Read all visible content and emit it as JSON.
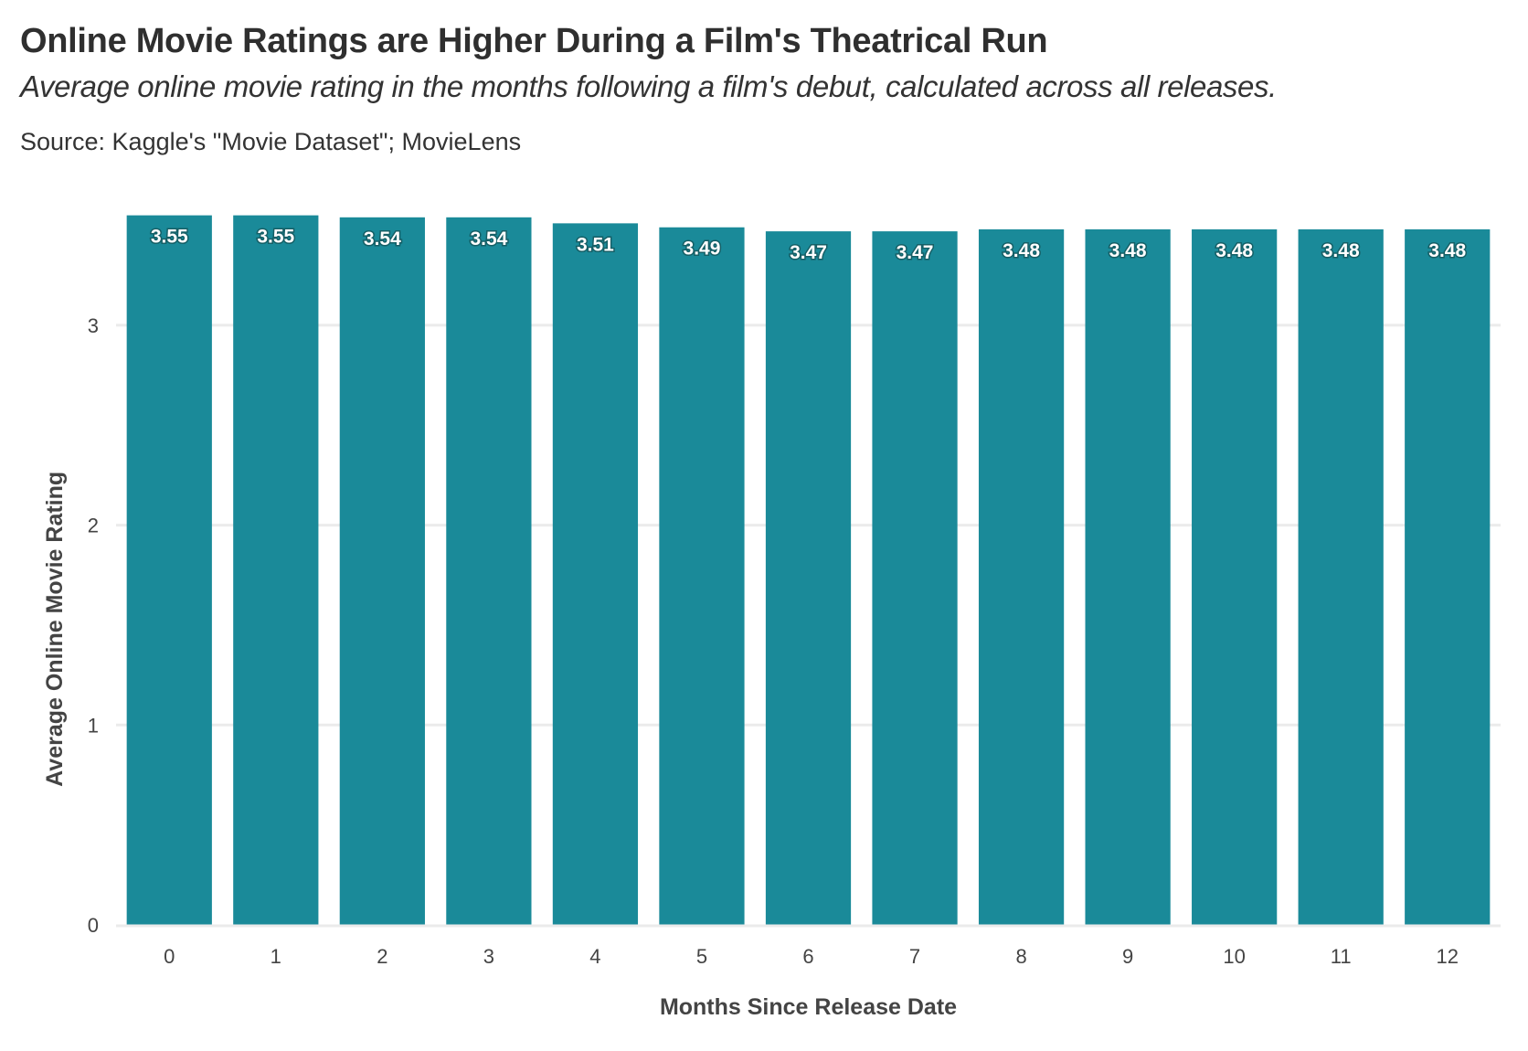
{
  "header": {
    "title": "Online Movie Ratings are Higher During a Film's Theatrical Run",
    "subtitle": "Average online movie rating in the months following a film's debut, calculated across all releases.",
    "caption": "Source: Kaggle's \"Movie Dataset\"; MovieLens"
  },
  "chart_data": {
    "type": "bar",
    "categories": [
      "0",
      "1",
      "2",
      "3",
      "4",
      "5",
      "6",
      "7",
      "8",
      "9",
      "10",
      "11",
      "12"
    ],
    "values": [
      3.55,
      3.55,
      3.54,
      3.54,
      3.51,
      3.49,
      3.47,
      3.47,
      3.48,
      3.48,
      3.48,
      3.48,
      3.48
    ],
    "data_labels": [
      "3.55",
      "3.55",
      "3.54",
      "3.54",
      "3.51",
      "3.49",
      "3.47",
      "3.47",
      "3.48",
      "3.48",
      "3.48",
      "3.48",
      "3.48"
    ],
    "xlabel": "Months Since Release Date",
    "ylabel": "Average Online Movie Rating",
    "ylim": [
      0,
      3.6
    ],
    "yticks": [
      0,
      1,
      2,
      3
    ],
    "grid": true,
    "bar_color": "#1a8a99",
    "gridline_color": "#ebebeb"
  }
}
